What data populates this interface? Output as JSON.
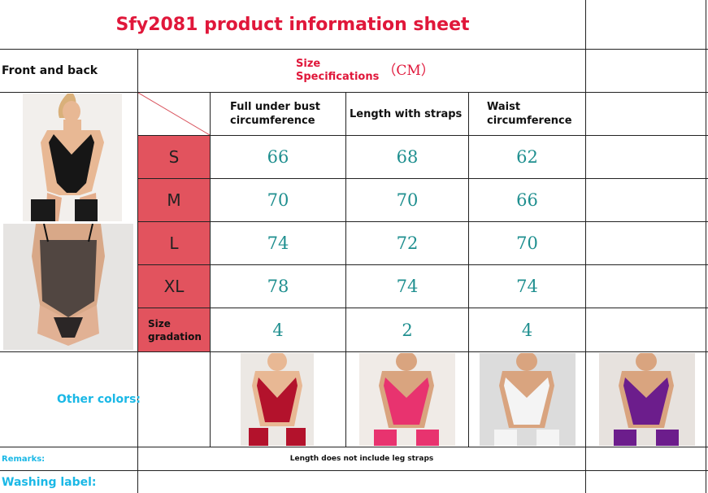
{
  "title": "Sfy2081 product information sheet",
  "front_back_label": "Front and back",
  "size_spec": {
    "line1": "Size",
    "line2": "Specifications",
    "unit": "（CM）"
  },
  "columns": [
    {
      "line1": "Full under bust",
      "line2": "circumference"
    },
    {
      "line1": "Length with straps",
      "line2": ""
    },
    {
      "line1": "Waist",
      "line2": "circumference"
    }
  ],
  "rows": [
    {
      "size": "S",
      "values": [
        "66",
        "68",
        "62"
      ]
    },
    {
      "size": "M",
      "values": [
        "70",
        "70",
        "66"
      ]
    },
    {
      "size": "L",
      "values": [
        "74",
        "72",
        "70"
      ]
    },
    {
      "size": "XL",
      "values": [
        "78",
        "74",
        "74"
      ]
    }
  ],
  "gradation": {
    "line1": "Size",
    "line2": "gradation",
    "values": [
      "4",
      "2",
      "4"
    ]
  },
  "other_colors_label": "Other colors:",
  "color_swatches": [
    {
      "name": "red",
      "color": "#b3122c"
    },
    {
      "name": "pink",
      "color": "#e8336f"
    },
    {
      "name": "white",
      "color": "#f1f1f1"
    },
    {
      "name": "purple",
      "color": "#6c1d8c"
    }
  ],
  "remarks_label": "Remarks:",
  "remarks_text": "Length does not include leg straps",
  "washing_label": "Washing label:",
  "colors": {
    "title_red": "#e0173a",
    "size_pink": "#e2535e",
    "value_teal": "#1f8f8f",
    "label_cyan": "#1ab8e6"
  }
}
